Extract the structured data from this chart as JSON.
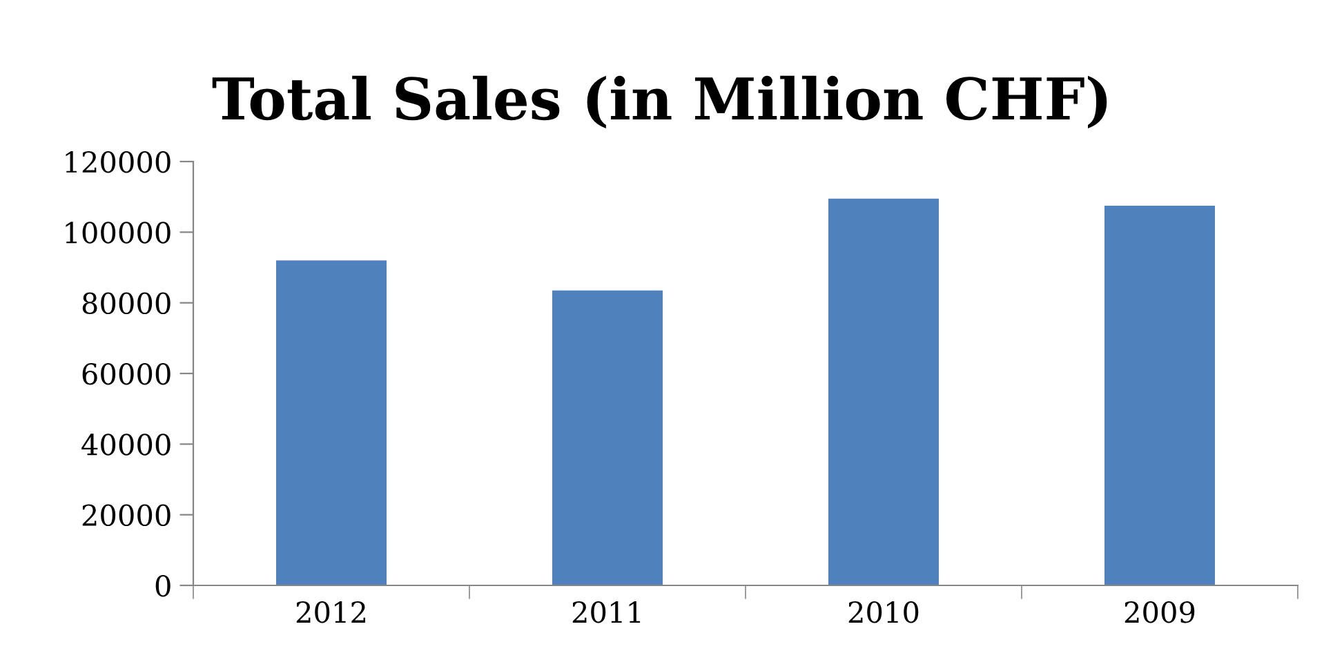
{
  "chart_data": {
    "type": "bar",
    "title": "Total Sales (in Million CHF)",
    "categories": [
      "2012",
      "2011",
      "2010",
      "2009"
    ],
    "values": [
      92000,
      83500,
      109500,
      107500
    ],
    "color": "#4f81bd",
    "ylim": [
      0,
      120000
    ],
    "yticks": [
      0,
      20000,
      40000,
      60000,
      80000,
      100000,
      120000
    ],
    "grid": false,
    "legend": false
  }
}
